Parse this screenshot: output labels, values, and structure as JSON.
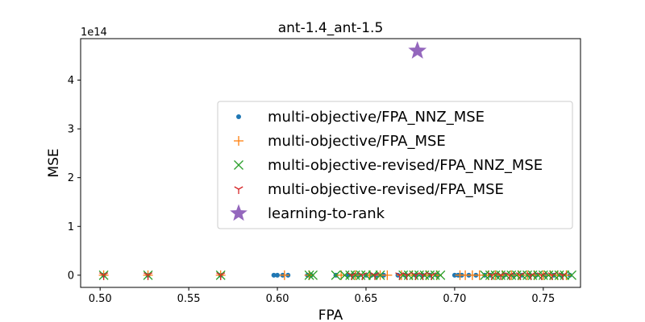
{
  "chart_data": {
    "type": "scatter",
    "title": "ant-1.4_ant-1.5",
    "xlabel": "FPA",
    "ylabel": "MSE",
    "y_offset_label": "1e14",
    "xlim": [
      0.489,
      0.771
    ],
    "ylim": [
      -25000000000000.0,
      485000000000000.0
    ],
    "x_ticks": [
      0.5,
      0.55,
      0.6,
      0.65,
      0.7,
      0.75
    ],
    "x_tick_labels": [
      "0.50",
      "0.55",
      "0.60",
      "0.65",
      "0.70",
      "0.75"
    ],
    "y_ticks": [
      0,
      100000000000000.0,
      200000000000000.0,
      300000000000000.0,
      400000000000000.0
    ],
    "y_tick_labels": [
      "0",
      "1",
      "2",
      "3",
      "4"
    ],
    "legend_position": "center-right",
    "series": [
      {
        "name": "multi-objective/FPA_NNZ_MSE",
        "marker": "dot",
        "color": "#1f77b4",
        "x": [
          0.502,
          0.527,
          0.568,
          0.598,
          0.6,
          0.603,
          0.606,
          0.617,
          0.619,
          0.633,
          0.64,
          0.643,
          0.646,
          0.65,
          0.653,
          0.656,
          0.66,
          0.668,
          0.672,
          0.678,
          0.682,
          0.686,
          0.69,
          0.7,
          0.702,
          0.704,
          0.708,
          0.712,
          0.717,
          0.72,
          0.724,
          0.728,
          0.733,
          0.738,
          0.742,
          0.746,
          0.751,
          0.756,
          0.76,
          0.765
        ],
        "y": [
          0,
          0,
          0,
          0,
          0,
          0,
          0,
          0,
          0,
          0,
          0,
          0,
          0,
          0,
          0,
          0,
          0,
          0,
          0,
          0,
          0,
          0,
          0,
          0,
          0,
          0,
          0,
          0,
          0,
          0,
          0,
          0,
          0,
          0,
          0,
          0,
          0,
          0,
          0,
          0
        ]
      },
      {
        "name": "multi-objective/FPA_MSE",
        "marker": "plus",
        "color": "#ff7f0e",
        "x": [
          0.502,
          0.527,
          0.568,
          0.604,
          0.618,
          0.636,
          0.644,
          0.652,
          0.658,
          0.662,
          0.67,
          0.676,
          0.684,
          0.69,
          0.703,
          0.706,
          0.71,
          0.714,
          0.719,
          0.723,
          0.727,
          0.732,
          0.736,
          0.741,
          0.745,
          0.75,
          0.754,
          0.758,
          0.763
        ],
        "y": [
          0,
          0,
          0,
          0,
          0,
          0,
          0,
          0,
          0,
          0,
          0,
          0,
          0,
          0,
          0,
          0,
          0,
          0,
          0,
          0,
          0,
          0,
          0,
          0,
          0,
          0,
          0,
          0,
          0
        ]
      },
      {
        "name": "multi-objective-revised/FPA_NNZ_MSE",
        "marker": "x",
        "color": "#2ca02c",
        "x": [
          0.502,
          0.527,
          0.568,
          0.618,
          0.62,
          0.633,
          0.638,
          0.641,
          0.644,
          0.647,
          0.65,
          0.654,
          0.658,
          0.671,
          0.674,
          0.677,
          0.68,
          0.683,
          0.686,
          0.689,
          0.692,
          0.717,
          0.72,
          0.723,
          0.726,
          0.729,
          0.732,
          0.735,
          0.738,
          0.741,
          0.744,
          0.747,
          0.75,
          0.753,
          0.756,
          0.759,
          0.762,
          0.766
        ],
        "y": [
          0,
          0,
          0,
          0,
          0,
          0,
          0,
          0,
          0,
          0,
          0,
          0,
          0,
          0,
          0,
          0,
          0,
          0,
          0,
          0,
          0,
          0,
          0,
          0,
          0,
          0,
          0,
          0,
          0,
          0,
          0,
          0,
          0,
          0,
          0,
          0,
          0,
          0
        ]
      },
      {
        "name": "multi-objective-revised/FPA_MSE",
        "marker": "tri_down",
        "color": "#d62728",
        "x": [
          0.502,
          0.527,
          0.568,
          0.642,
          0.648,
          0.655,
          0.669,
          0.673,
          0.678,
          0.682,
          0.687,
          0.721,
          0.726,
          0.731,
          0.737,
          0.743,
          0.749,
          0.755,
          0.761
        ],
        "y": [
          0,
          0,
          0,
          0,
          0,
          0,
          0,
          0,
          0,
          0,
          0,
          0,
          0,
          0,
          0,
          0,
          0,
          0,
          0
        ]
      },
      {
        "name": "learning-to-rank",
        "marker": "star",
        "color": "#9467bd",
        "x": [
          0.679
        ],
        "y": [
          460000000000000.0
        ]
      }
    ]
  }
}
